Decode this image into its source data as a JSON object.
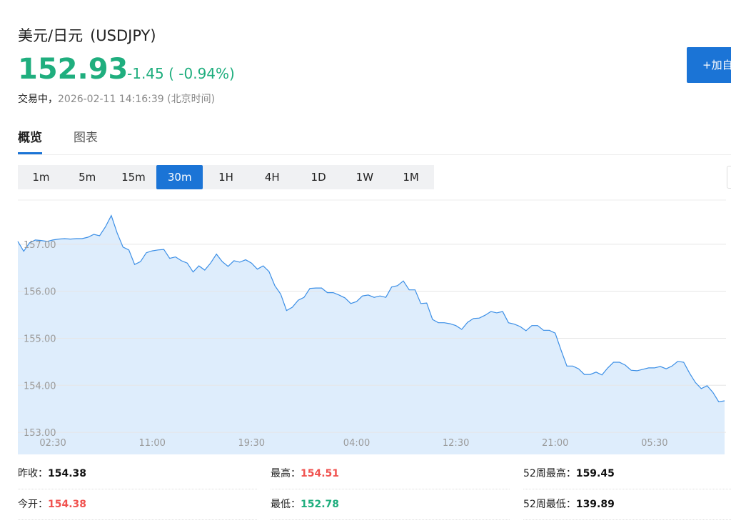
{
  "header": {
    "name": "美元/日元",
    "code": "(USDJPY)",
    "price": "152.93",
    "change": "-1.45 ( -0.94%)",
    "status": "交易中，",
    "time": "2026-02-11 14:16:39 (北京时间)",
    "button": "+加自"
  },
  "tabs": [
    "概览",
    "图表"
  ],
  "periods": [
    "1m",
    "5m",
    "15m",
    "30m",
    "1H",
    "4H",
    "1D",
    "1W",
    "1M"
  ],
  "active_period": "30m",
  "chart_data": {
    "type": "line",
    "color": "#3a8ee6",
    "fill": "#deedfc",
    "grid": true,
    "categories": [
      null,
      null,
      null,
      null,
      null,
      null,
      "02:30",
      null,
      null,
      null,
      null,
      null,
      null,
      null,
      null,
      null,
      null,
      null,
      null,
      null,
      null,
      null,
      null,
      "11:00",
      null,
      null,
      null,
      null,
      null,
      null,
      null,
      null,
      null,
      null,
      null,
      null,
      null,
      null,
      null,
      null,
      "19:30",
      null,
      null,
      null,
      null,
      null,
      null,
      null,
      null,
      null,
      null,
      null,
      null,
      null,
      null,
      null,
      null,
      null,
      "04:00",
      null,
      null,
      null,
      null,
      null,
      null,
      null,
      null,
      null,
      null,
      null,
      null,
      null,
      null,
      null,
      null,
      "12:30",
      null,
      null,
      null,
      null,
      null,
      null,
      null,
      null,
      null,
      null,
      null,
      null,
      null,
      null,
      null,
      null,
      "21:00",
      null,
      null,
      null,
      null,
      null,
      null,
      null,
      null,
      null,
      null,
      null,
      null,
      null,
      null,
      null,
      null,
      "05:30",
      null,
      null,
      null,
      null,
      null,
      null,
      null,
      null,
      null,
      null,
      null,
      null
    ],
    "values": [
      157.06,
      156.85,
      157.03,
      157.09,
      157.08,
      157.06,
      157.09,
      157.11,
      157.12,
      157.11,
      157.12,
      157.12,
      157.15,
      157.21,
      157.18,
      157.37,
      157.61,
      157.24,
      156.94,
      156.88,
      156.57,
      156.63,
      156.82,
      156.86,
      156.88,
      156.89,
      156.7,
      156.73,
      156.65,
      156.6,
      156.41,
      156.54,
      156.45,
      156.6,
      156.79,
      156.63,
      156.53,
      156.65,
      156.62,
      156.67,
      156.6,
      156.47,
      156.54,
      156.42,
      156.12,
      155.94,
      155.59,
      155.66,
      155.81,
      155.87,
      156.06,
      156.07,
      156.07,
      155.97,
      155.97,
      155.92,
      155.86,
      155.74,
      155.78,
      155.9,
      155.92,
      155.87,
      155.9,
      155.87,
      156.09,
      156.12,
      156.22,
      156.03,
      156.03,
      155.74,
      155.75,
      155.4,
      155.33,
      155.33,
      155.31,
      155.27,
      155.19,
      155.34,
      155.42,
      155.43,
      155.49,
      155.57,
      155.54,
      155.57,
      155.33,
      155.3,
      155.25,
      155.16,
      155.27,
      155.27,
      155.17,
      155.17,
      155.11,
      154.75,
      154.41,
      154.41,
      154.35,
      154.23,
      154.23,
      154.28,
      154.22,
      154.37,
      154.49,
      154.49,
      154.43,
      154.32,
      154.31,
      154.34,
      154.37,
      154.37,
      154.4,
      154.35,
      154.41,
      154.51,
      154.49,
      154.26,
      154.06,
      153.93,
      153.99,
      153.85,
      153.65,
      153.67
    ],
    "ylim": [
      152.53,
      157.94
    ],
    "yticks": [
      {
        "value": 153,
        "label": "153.00"
      },
      {
        "value": 154,
        "label": "154.00"
      },
      {
        "value": 155,
        "label": "155.00"
      },
      {
        "value": 156,
        "label": "156.00"
      },
      {
        "value": 157,
        "label": "157.00"
      }
    ]
  },
  "stats": [
    [
      {
        "label": "昨收：",
        "value": "154.38"
      },
      {
        "label": "最高：",
        "value": "154.51"
      },
      {
        "label": "52周最高：",
        "value": "159.45"
      }
    ],
    [
      {
        "label": "今开：",
        "value": "154.38"
      },
      {
        "label": "最低：",
        "value": "152.78"
      },
      {
        "label": "52周最低：",
        "value": "139.89"
      }
    ]
  ]
}
